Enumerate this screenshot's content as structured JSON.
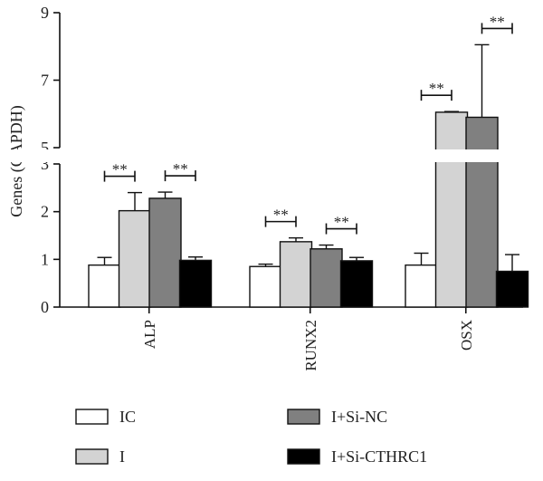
{
  "chart_data": {
    "type": "bar",
    "ylabel": "Genes (GAPDH)",
    "categories": [
      "ALP",
      "RUNX2",
      "OSX"
    ],
    "series": [
      {
        "name": "IC",
        "color": "#ffffff",
        "values": [
          0.88,
          0.85,
          0.88
        ],
        "errors": [
          0.16,
          0.05,
          0.25
        ]
      },
      {
        "name": "I",
        "color": "#d3d3d3",
        "values": [
          2.02,
          1.37,
          6.05
        ],
        "errors": [
          0.38,
          0.08,
          0.02
        ]
      },
      {
        "name": "I+Si-NC",
        "color": "#808080",
        "values": [
          2.28,
          1.22,
          5.9
        ],
        "errors": [
          0.13,
          0.08,
          2.15
        ]
      },
      {
        "name": "I+Si-CTHRC1",
        "color": "#000000",
        "values": [
          0.98,
          0.97,
          0.75
        ],
        "errors": [
          0.07,
          0.07,
          0.35
        ]
      }
    ],
    "y_ticks_lower": [
      "0",
      "1",
      "2",
      "3"
    ],
    "y_ticks_upper": [
      "5",
      "7",
      "9"
    ],
    "ylim_lower": [
      0,
      3
    ],
    "ylim_upper": [
      5,
      9
    ],
    "axis_break": [
      3,
      5
    ],
    "significance": [
      {
        "category": "ALP",
        "between": [
          "IC",
          "I"
        ],
        "label": "**"
      },
      {
        "category": "ALP",
        "between": [
          "I+Si-NC",
          "I+Si-CTHRC1"
        ],
        "label": "**"
      },
      {
        "category": "RUNX2",
        "between": [
          "IC",
          "I"
        ],
        "label": "**"
      },
      {
        "category": "RUNX2",
        "between": [
          "I+Si-NC",
          "I+Si-CTHRC1"
        ],
        "label": "**"
      },
      {
        "category": "OSX",
        "between": [
          "IC",
          "I"
        ],
        "label": "**"
      },
      {
        "category": "OSX",
        "between": [
          "I+Si-NC",
          "I+Si-CTHRC1"
        ],
        "label": "**"
      }
    ],
    "legend_position": "bottom"
  }
}
